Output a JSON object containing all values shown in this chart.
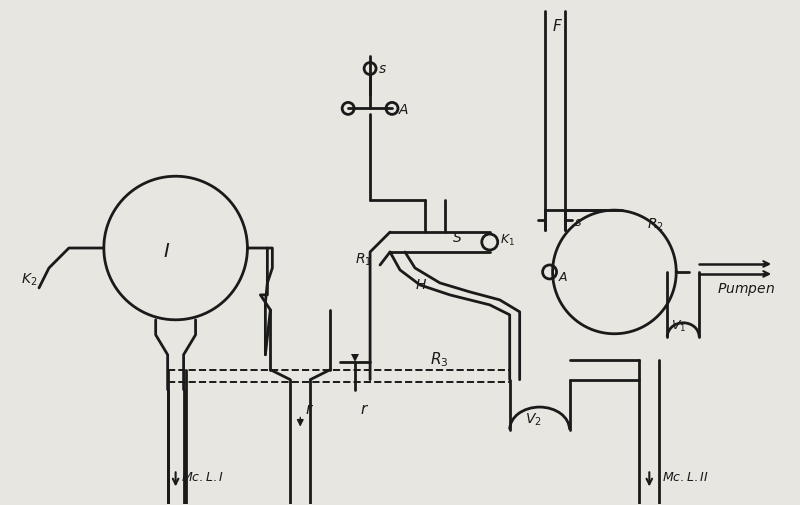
{
  "bg_color": "#e8e6e0",
  "line_color": "#1a1a1a",
  "lw": 2.0,
  "figsize": [
    8.0,
    5.05
  ],
  "dpi": 100
}
